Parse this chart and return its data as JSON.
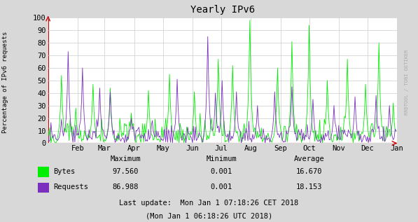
{
  "title": "Yearly IPv6",
  "ylabel": "Percentage of IPv6 requests",
  "xlabel_months": [
    "Feb",
    "Mar",
    "Apr",
    "May",
    "Jun",
    "Jul",
    "Aug",
    "Sep",
    "Oct",
    "Nov",
    "Dec",
    "Jan"
  ],
  "ylim": [
    0,
    100
  ],
  "yticks": [
    0,
    10,
    20,
    30,
    40,
    50,
    60,
    70,
    80,
    90,
    100
  ],
  "color_bytes": "#00EE00",
  "color_requests": "#7B2FBE",
  "color_grid": "#CCCCCC",
  "color_bg": "#D8D8D8",
  "color_plot_bg": "#FFFFFF",
  "legend_labels": [
    "Bytes",
    "Requests"
  ],
  "stats_header": [
    "Maximum",
    "Minimum",
    "Average"
  ],
  "stats_bytes": [
    "97.560",
    "0.001",
    "16.670"
  ],
  "stats_requests": [
    "86.988",
    "0.001",
    "18.153"
  ],
  "last_update_line1": "Last update:  Mon Jan 1 07:18:26 CET 2018",
  "last_update_line2": "(Mon Jan 1 06:18:26 UTC 2018)",
  "watermark": "RRDTOOL / TOBI OETIKER",
  "seed": 42,
  "n_points": 365
}
